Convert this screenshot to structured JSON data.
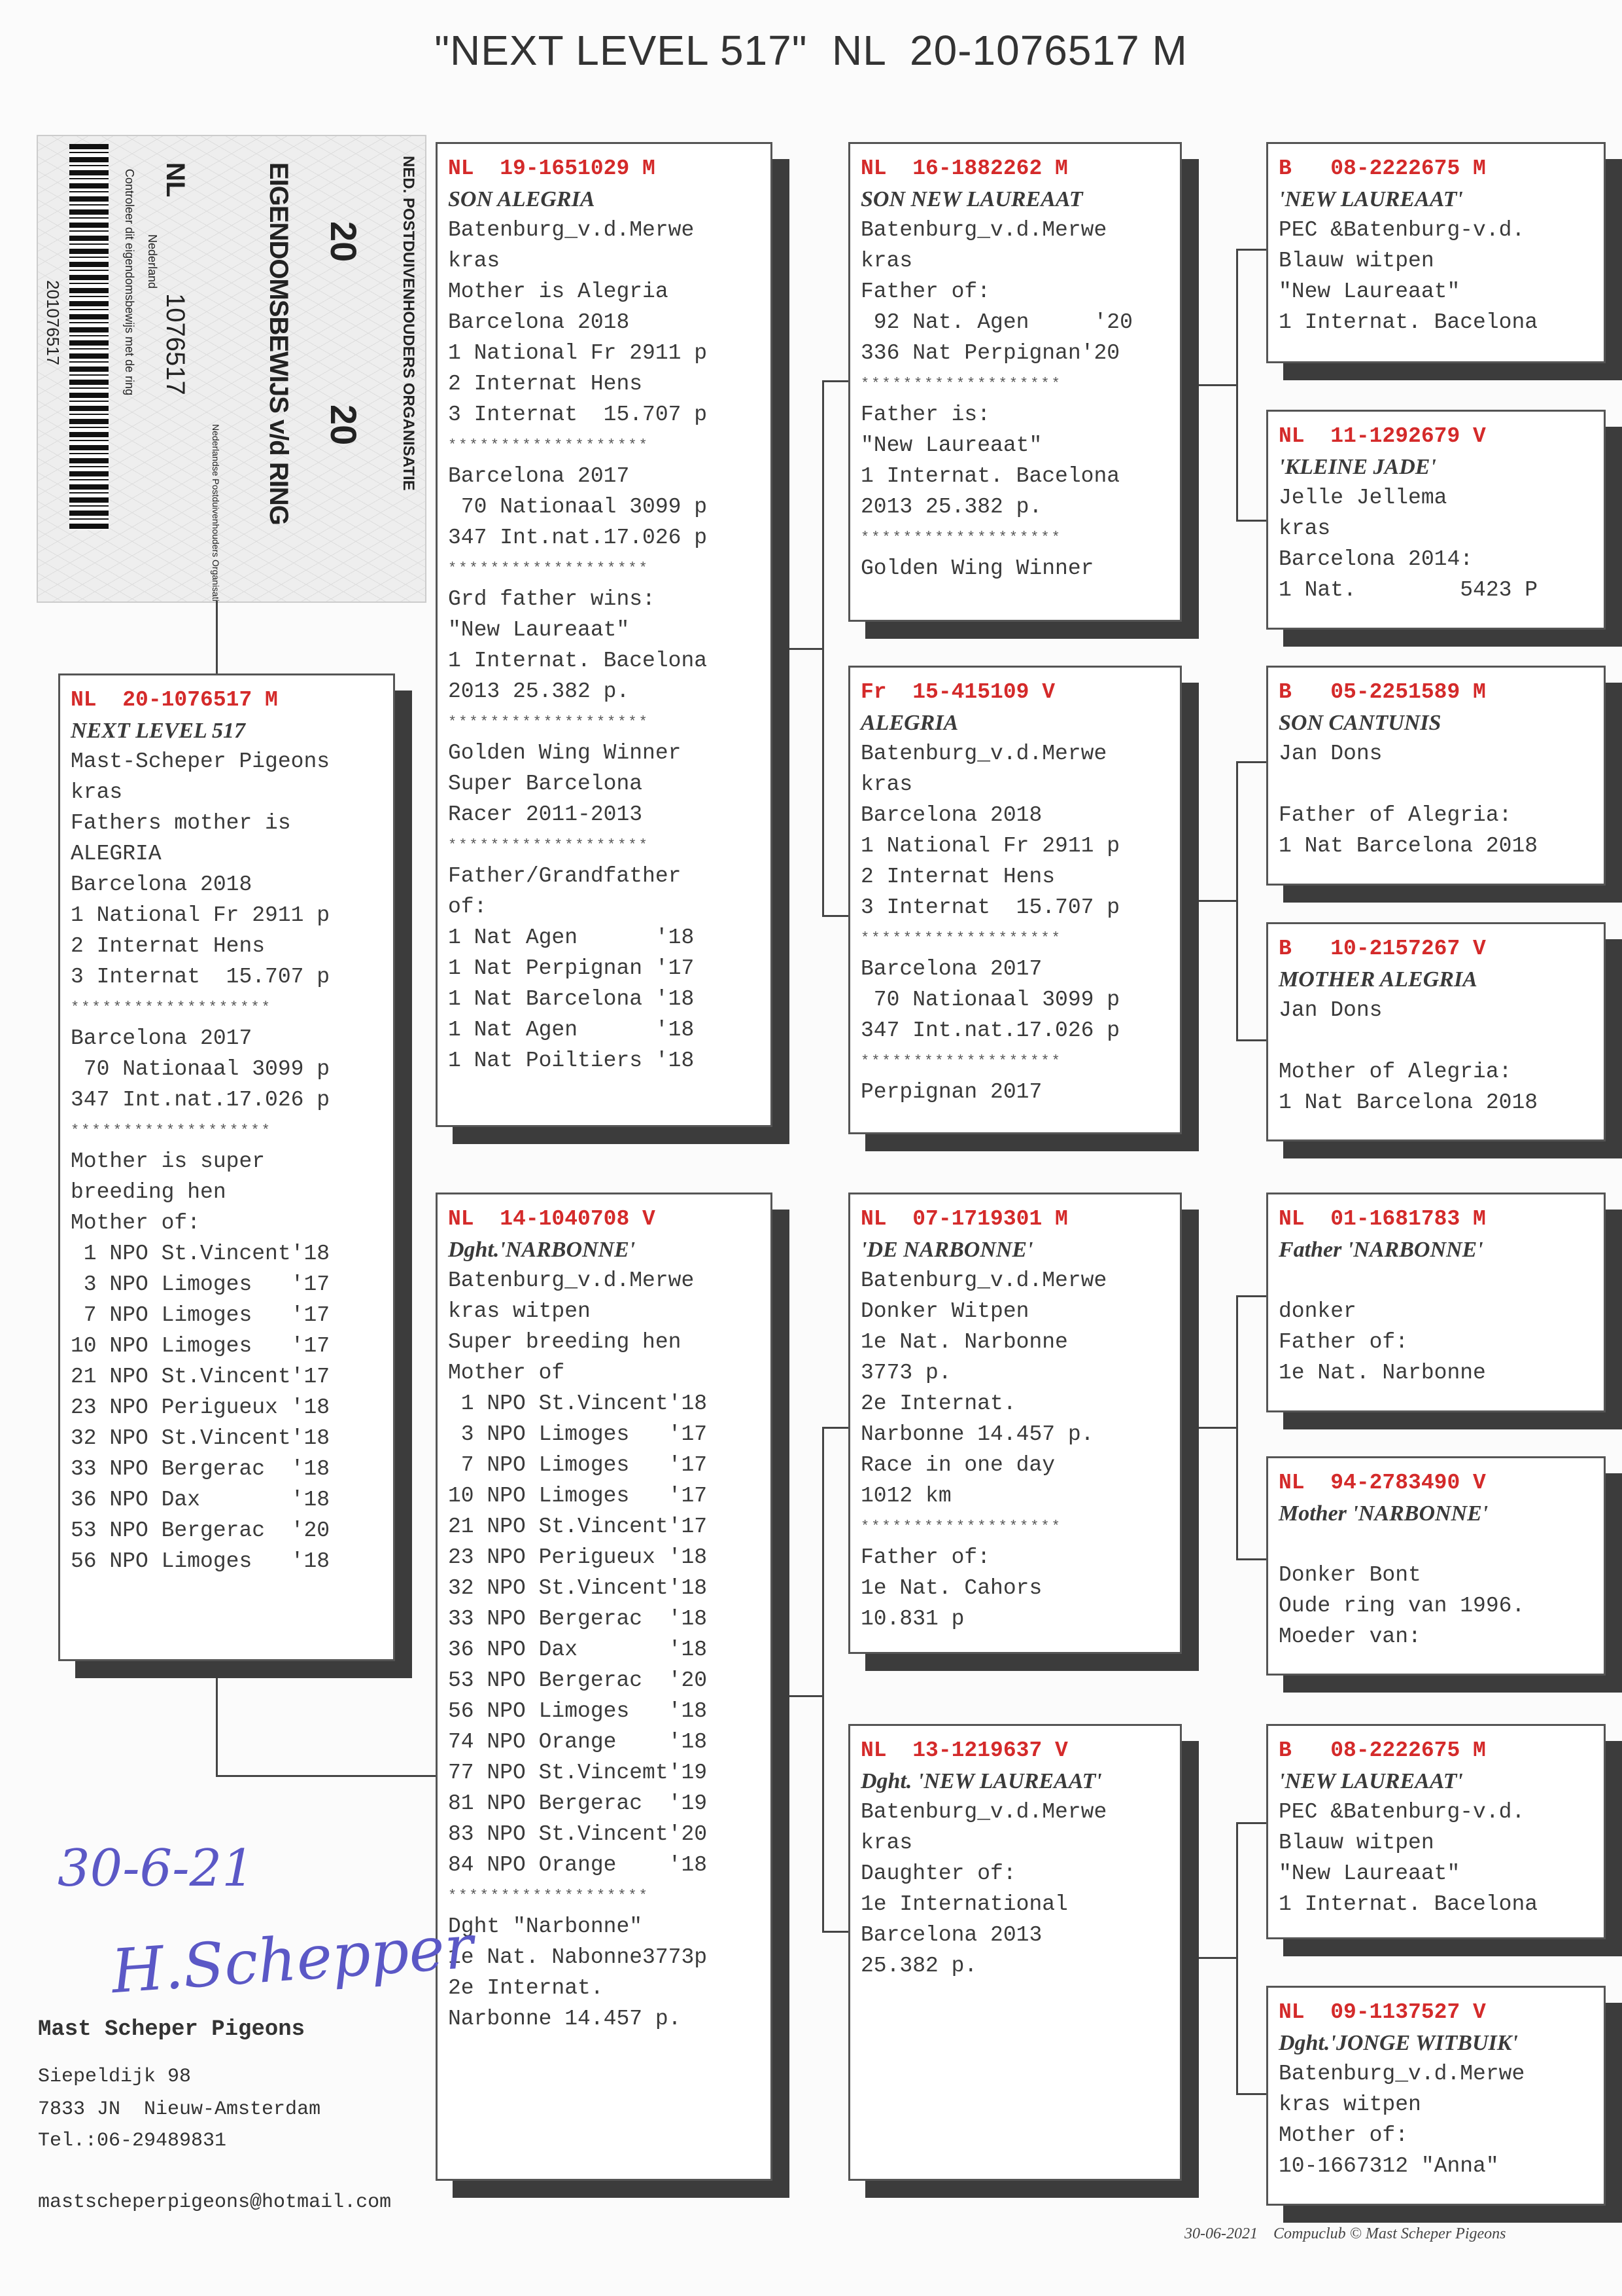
{
  "title": "\"NEXT LEVEL 517\"  NL  20-1076517 M",
  "ring_card": {
    "org": "NED. POSTDUIVENHOUDERS ORGANISATIE",
    "doc": "EIGENDOMSBEWIJS v/d RING",
    "year_left": "20",
    "year_right": "20",
    "country": "NL",
    "ring_number": "1076517",
    "nation": "Nederland",
    "npo": "Nederlandse Postduivenhouders Organisatie",
    "control": "Controleer dit eigendomsbewijs met de ring",
    "barcode_number": "201076517"
  },
  "boxes": {
    "subject": {
      "ring": "NL  20-1076517 M",
      "lines": [
        "NEXT LEVEL 517",
        "Mast-Scheper Pigeons",
        "kras",
        "Fathers mother is",
        "ALEGRIA",
        "Barcelona 2018",
        "1 National Fr 2911 p",
        "2 Internat Hens",
        "3 Internat  15.707 p",
        "*******************",
        "Barcelona 2017",
        " 70 Nationaal 3099 p",
        "347 Int.nat.17.026 p",
        "*******************",
        "Mother is super",
        "breeding hen",
        "Mother of:",
        " 1 NPO St.Vincent'18",
        " 3 NPO Limoges   '17",
        " 7 NPO Limoges   '17",
        "10 NPO Limoges   '17",
        "21 NPO St.Vincent'17",
        "23 NPO Perigueux '18",
        "32 NPO St.Vincent'18",
        "33 NPO Bergerac  '18",
        "36 NPO Dax       '18",
        "53 NPO Bergerac  '20",
        "56 NPO Limoges   '18"
      ]
    },
    "father": {
      "ring": "NL  19-1651029 M",
      "lines": [
        "SON ALEGRIA",
        "Batenburg_v.d.Merwe",
        "kras",
        "Mother is Alegria",
        "Barcelona 2018",
        "1 National Fr 2911 p",
        "2 Internat Hens",
        "3 Internat  15.707 p",
        "*******************",
        "Barcelona 2017",
        " 70 Nationaal 3099 p",
        "347 Int.nat.17.026 p",
        "*******************",
        "Grd father wins:",
        "\"New Laureaat\"",
        "1 Internat. Bacelona",
        "2013 25.382 p.",
        "*******************",
        "Golden Wing Winner",
        "Super Barcelona",
        "Racer 2011-2013",
        "*******************",
        "Father/Grandfather",
        "of:",
        "1 Nat Agen      '18",
        "1 Nat Perpignan '17",
        "1 Nat Barcelona '18",
        "1 Nat Agen      '18",
        "1 Nat Poiltiers '18"
      ]
    },
    "mother": {
      "ring": "NL  14-1040708 V",
      "lines": [
        "Dght.'NARBONNE'",
        "Batenburg_v.d.Merwe",
        "kras witpen",
        "Super breeding hen",
        "Mother of",
        " 1 NPO St.Vincent'18",
        " 3 NPO Limoges   '17",
        " 7 NPO Limoges   '17",
        "10 NPO Limoges   '17",
        "21 NPO St.Vincent'17",
        "23 NPO Perigueux '18",
        "32 NPO St.Vincent'18",
        "33 NPO Bergerac  '18",
        "36 NPO Dax       '18",
        "53 NPO Bergerac  '20",
        "56 NPO Limoges   '18",
        "74 NPO Orange    '18",
        "77 NPO St.Vincemt'19",
        "81 NPO Bergerac  '19",
        "83 NPO St.Vincent'20",
        "84 NPO Orange    '18",
        "*******************",
        "Dght \"Narbonne\"",
        "1e Nat. Nabonne3773p",
        "2e Internat.",
        "Narbonne 14.457 p."
      ]
    },
    "ff": {
      "ring": "NL  16-1882262 M",
      "lines": [
        "SON NEW LAUREAAT",
        "Batenburg_v.d.Merwe",
        "kras",
        "Father of:",
        " 92 Nat. Agen     '20",
        "336 Nat Perpignan'20",
        "*******************",
        "Father is:",
        "\"New Laureaat\"",
        "1 Internat. Bacelona",
        "2013 25.382 p.",
        "*******************",
        "Golden Wing Winner"
      ]
    },
    "fm": {
      "ring": "Fr  15-415109 V",
      "lines": [
        "ALEGRIA",
        "Batenburg_v.d.Merwe",
        "kras",
        "Barcelona 2018",
        "1 National Fr 2911 p",
        "2 Internat Hens",
        "3 Internat  15.707 p",
        "*******************",
        "Barcelona 2017",
        " 70 Nationaal 3099 p",
        "347 Int.nat.17.026 p",
        "*******************",
        "Perpignan 2017"
      ]
    },
    "mf": {
      "ring": "NL  07-1719301 M",
      "lines": [
        "'DE NARBONNE'",
        "Batenburg_v.d.Merwe",
        "Donker Witpen",
        "1e Nat. Narbonne",
        "3773 p.",
        "2e Internat.",
        "Narbonne 14.457 p.",
        "Race in one day",
        "1012 km",
        "*******************",
        "Father of:",
        "1e Nat. Cahors",
        "10.831 p"
      ]
    },
    "mm": {
      "ring": "NL  13-1219637 V",
      "lines": [
        "Dght. 'NEW LAUREAAT'",
        "Batenburg_v.d.Merwe",
        "kras",
        "Daughter of:",
        "1e International",
        "Barcelona 2013",
        "25.382 p."
      ]
    },
    "fff": {
      "ring": "B   08-2222675 M",
      "lines": [
        "'NEW LAUREAAT'",
        "PEC &Batenburg-v.d.",
        "Blauw witpen",
        "\"New Laureaat\"",
        "1 Internat. Bacelona"
      ]
    },
    "ffm": {
      "ring": "NL  11-1292679 V",
      "lines": [
        "'KLEINE JADE'",
        "Jelle Jellema",
        "kras",
        "Barcelona 2014:",
        "1 Nat.        5423 P"
      ]
    },
    "fmf": {
      "ring": "B   05-2251589 M",
      "lines": [
        "SON CANTUNIS",
        "Jan Dons",
        "",
        "Father of Alegria:",
        "1 Nat Barcelona 2018"
      ]
    },
    "fmm": {
      "ring": "B   10-2157267 V",
      "lines": [
        "MOTHER ALEGRIA",
        "Jan Dons",
        "",
        "Mother of Alegria:",
        "1 Nat Barcelona 2018"
      ]
    },
    "mff": {
      "ring": "NL  01-1681783 M",
      "lines": [
        "Father 'NARBONNE'",
        "",
        "donker",
        "Father of:",
        "1e Nat. Narbonne"
      ]
    },
    "mfm": {
      "ring": "NL  94-2783490 V",
      "lines": [
        "Mother 'NARBONNE'",
        "",
        "Donker Bont",
        "Oude ring van 1996.",
        "Moeder van:"
      ]
    },
    "mmf": {
      "ring": "B   08-2222675 M",
      "lines": [
        "'NEW LAUREAAT'",
        "PEC &Batenburg-v.d.",
        "Blauw witpen",
        "\"New Laureaat\"",
        "1 Internat. Bacelona"
      ]
    },
    "mmm": {
      "ring": "NL  09-1137527 V",
      "lines": [
        "Dght.'JONGE WITBUIK'",
        "Batenburg_v.d.Merwe",
        "kras witpen",
        "Mother of:",
        "10-1667312 \"Anna\""
      ]
    }
  },
  "handwritten": {
    "date": "30-6-21",
    "signature": "H.Schepper"
  },
  "owner": {
    "name": "Mast Scheper Pigeons",
    "street": "Siepeldijk 98",
    "city": "7833 JN  Nieuw-Amsterdam",
    "phone": "Tel.:06-29489831",
    "email": "mastscheperpigeons@hotmail.com"
  },
  "footer": {
    "date": "30-06-2021",
    "credit": "Compuclub © Mast Scheper Pigeons"
  },
  "colors": {
    "ring": "#d42a2a",
    "handwriting": "#5b58c6"
  }
}
